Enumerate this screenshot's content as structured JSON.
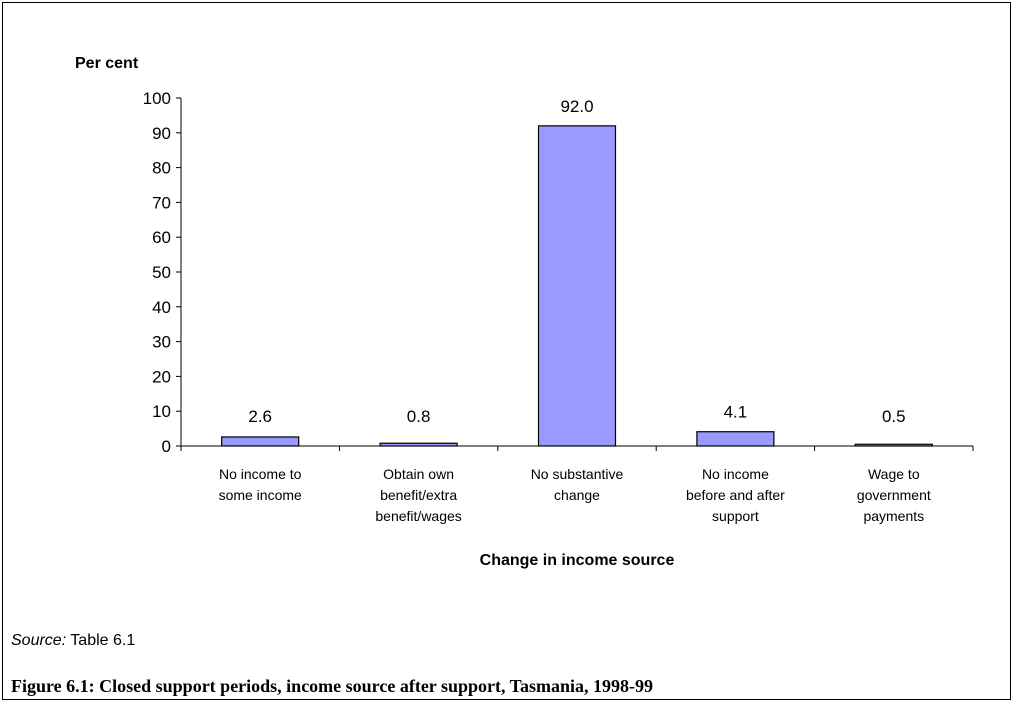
{
  "chart_data": {
    "type": "bar",
    "categories": [
      [
        "No income to",
        "some income"
      ],
      [
        "Obtain own",
        "benefit/extra",
        "benefit/wages"
      ],
      [
        "No substantive",
        "change"
      ],
      [
        "No income",
        "before and after",
        "support"
      ],
      [
        "Wage to",
        "government",
        "payments"
      ]
    ],
    "values": [
      2.6,
      0.8,
      92.0,
      4.1,
      0.5
    ],
    "data_labels": [
      "2.6",
      "0.8",
      "92.0",
      "4.1",
      "0.5"
    ],
    "ylabel": "Per cent",
    "xlabel": "Change in income source",
    "ylim": [
      0,
      100
    ],
    "yticks": [
      0,
      10,
      20,
      30,
      40,
      50,
      60,
      70,
      80,
      90,
      100
    ],
    "grid": false,
    "legend": "none",
    "bar_color": "#9999ff",
    "bar_edge_color": "#000000"
  },
  "source": {
    "label": "Source:",
    "text": " Table 6.1"
  },
  "caption": "Figure 6.1: Closed support periods, income source after support, Tasmania, 1998-99"
}
